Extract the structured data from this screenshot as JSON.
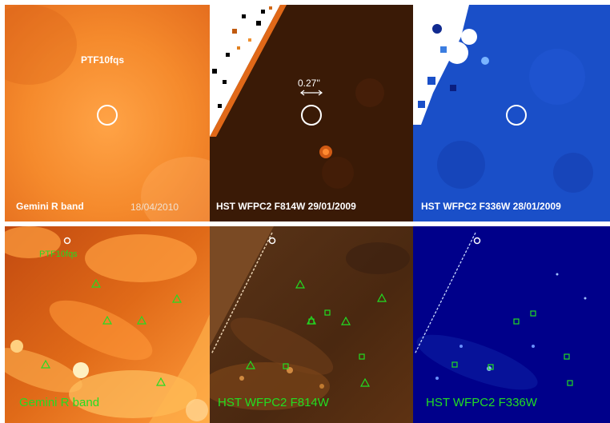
{
  "top_row": {
    "gemini": {
      "object": "PTF10fqs",
      "band": "Gemini R band",
      "date": "18/04/2010"
    },
    "f814w": {
      "label": "HST WFPC2 F814W  29/01/2009",
      "scale": "0.27''"
    },
    "f336w": {
      "label": "HST WFPC2 F336W  28/01/2009"
    }
  },
  "bottom_row": {
    "gemini": {
      "object": "PTF10fqs",
      "band": "Gemini R band"
    },
    "f814w": {
      "band": "HST WFPC2 F814W"
    },
    "f336w": {
      "band": "HST WFPC2 F336W"
    }
  },
  "colors": {
    "orange": "#f07a18",
    "dark_brown": "#3a1a06",
    "blue": "#1a4fc8",
    "navy": "#00008a",
    "marker_green": "#22dd22",
    "circle_white": "#ffffff"
  }
}
